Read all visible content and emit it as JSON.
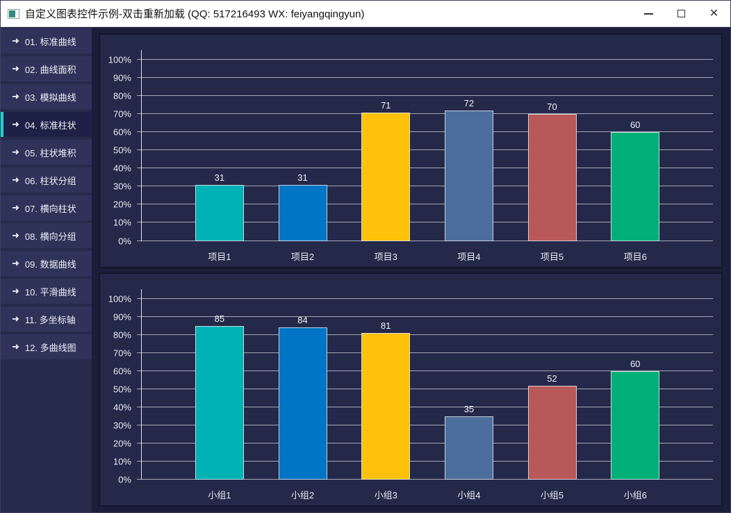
{
  "window": {
    "title": "自定义图表控件示例-双击重新加载 (QQ: 517216493 WX: feiyangqingyun)",
    "controls": {
      "minimize_icon": "minimize",
      "maximize_icon": "maximize",
      "close_icon": "✕"
    }
  },
  "sidebar": {
    "arrow_icon": "➜",
    "items": [
      {
        "label": "01. 标准曲线",
        "selected": false
      },
      {
        "label": "02. 曲线面积",
        "selected": false
      },
      {
        "label": "03. 模拟曲线",
        "selected": false
      },
      {
        "label": "04. 标准柱状",
        "selected": true
      },
      {
        "label": "05. 柱状堆积",
        "selected": false
      },
      {
        "label": "06. 柱状分组",
        "selected": false
      },
      {
        "label": "07. 横向柱状",
        "selected": false
      },
      {
        "label": "08. 横向分组",
        "selected": false
      },
      {
        "label": "09. 数据曲线",
        "selected": false
      },
      {
        "label": "10. 平滑曲线",
        "selected": false
      },
      {
        "label": "11. 多坐标轴",
        "selected": false
      },
      {
        "label": "12. 多曲线图",
        "selected": false
      }
    ]
  },
  "colors": {
    "accent": "#1fd1d1",
    "bar_palette": [
      "#00b2b5",
      "#0075c5",
      "#ffc10a",
      "#4c6e9c",
      "#b85859",
      "#00b077"
    ],
    "panel_background": "#242849",
    "content_background": "#1a1e3a"
  },
  "chart_data": [
    {
      "type": "bar",
      "title": "",
      "categories": [
        "项目1",
        "项目2",
        "项目3",
        "项目4",
        "项目5",
        "项目6"
      ],
      "values": [
        31,
        31,
        71,
        72,
        70,
        60
      ],
      "ylim": [
        0,
        100
      ],
      "ytick_labels": [
        "0%",
        "10%",
        "20%",
        "30%",
        "40%",
        "50%",
        "60%",
        "70%",
        "80%",
        "90%",
        "100%"
      ],
      "grid": true,
      "legend": "none"
    },
    {
      "type": "bar",
      "title": "",
      "categories": [
        "小组1",
        "小组2",
        "小组3",
        "小组4",
        "小组5",
        "小组6"
      ],
      "values": [
        85,
        84,
        81,
        35,
        52,
        60
      ],
      "ylim": [
        0,
        100
      ],
      "ytick_labels": [
        "0%",
        "10%",
        "20%",
        "30%",
        "40%",
        "50%",
        "60%",
        "70%",
        "80%",
        "90%",
        "100%"
      ],
      "grid": true,
      "legend": "none"
    }
  ]
}
